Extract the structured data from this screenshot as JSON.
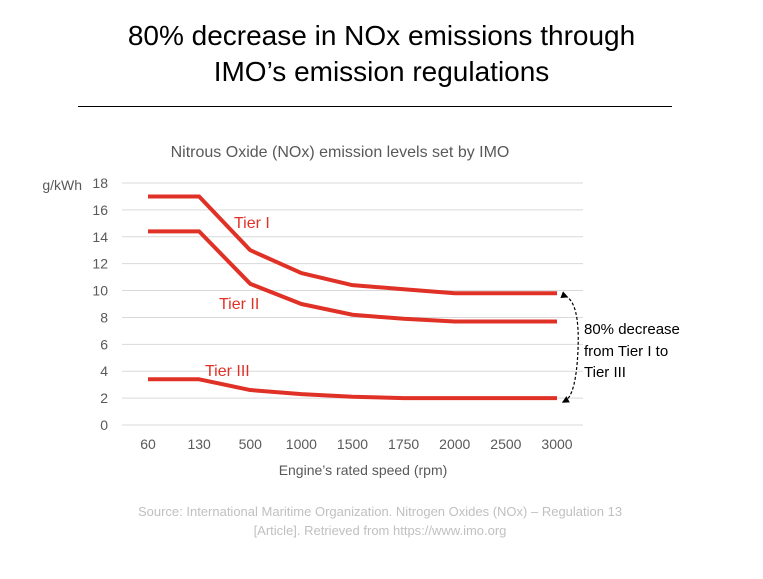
{
  "slide": {
    "title_line1": "80% decrease in NOx emissions through",
    "title_line2": "IMO’s emission regulations",
    "source_line1": "Source: International Maritime Organization. Nitrogen Oxides (NOx) – Regulation 13",
    "source_line2": "[Article]. Retrieved from https://www.imo.org"
  },
  "chart_data": {
    "type": "line",
    "title": "Nitrous Oxide (NOx) emission levels set by IMO",
    "xlabel": "Engine’s rated speed (rpm)",
    "ylabel": "g/kWh",
    "categories": [
      "60",
      "130",
      "500",
      "1000",
      "1500",
      "1750",
      "2000",
      "2500",
      "3000"
    ],
    "ylim": [
      0,
      18
    ],
    "yticks": [
      0,
      2,
      4,
      6,
      8,
      10,
      12,
      14,
      16,
      18
    ],
    "grid": true,
    "series": [
      {
        "name": "Tier I",
        "values": [
          17,
          17,
          13,
          11.3,
          10.4,
          10.1,
          9.8,
          9.8,
          9.8
        ]
      },
      {
        "name": "Tier II",
        "values": [
          14.4,
          14.4,
          10.5,
          9.0,
          8.2,
          7.9,
          7.7,
          7.7,
          7.7
        ]
      },
      {
        "name": "Tier III",
        "values": [
          3.4,
          3.4,
          2.6,
          2.3,
          2.1,
          2.0,
          2.0,
          2.0,
          2.0
        ]
      }
    ],
    "annotation": {
      "line1": "80% decrease",
      "line2": "from Tier I to",
      "line3": "Tier III"
    },
    "colors": {
      "series": "#e03127",
      "grid": "#d9d9d9",
      "axis_text": "#595959"
    }
  }
}
